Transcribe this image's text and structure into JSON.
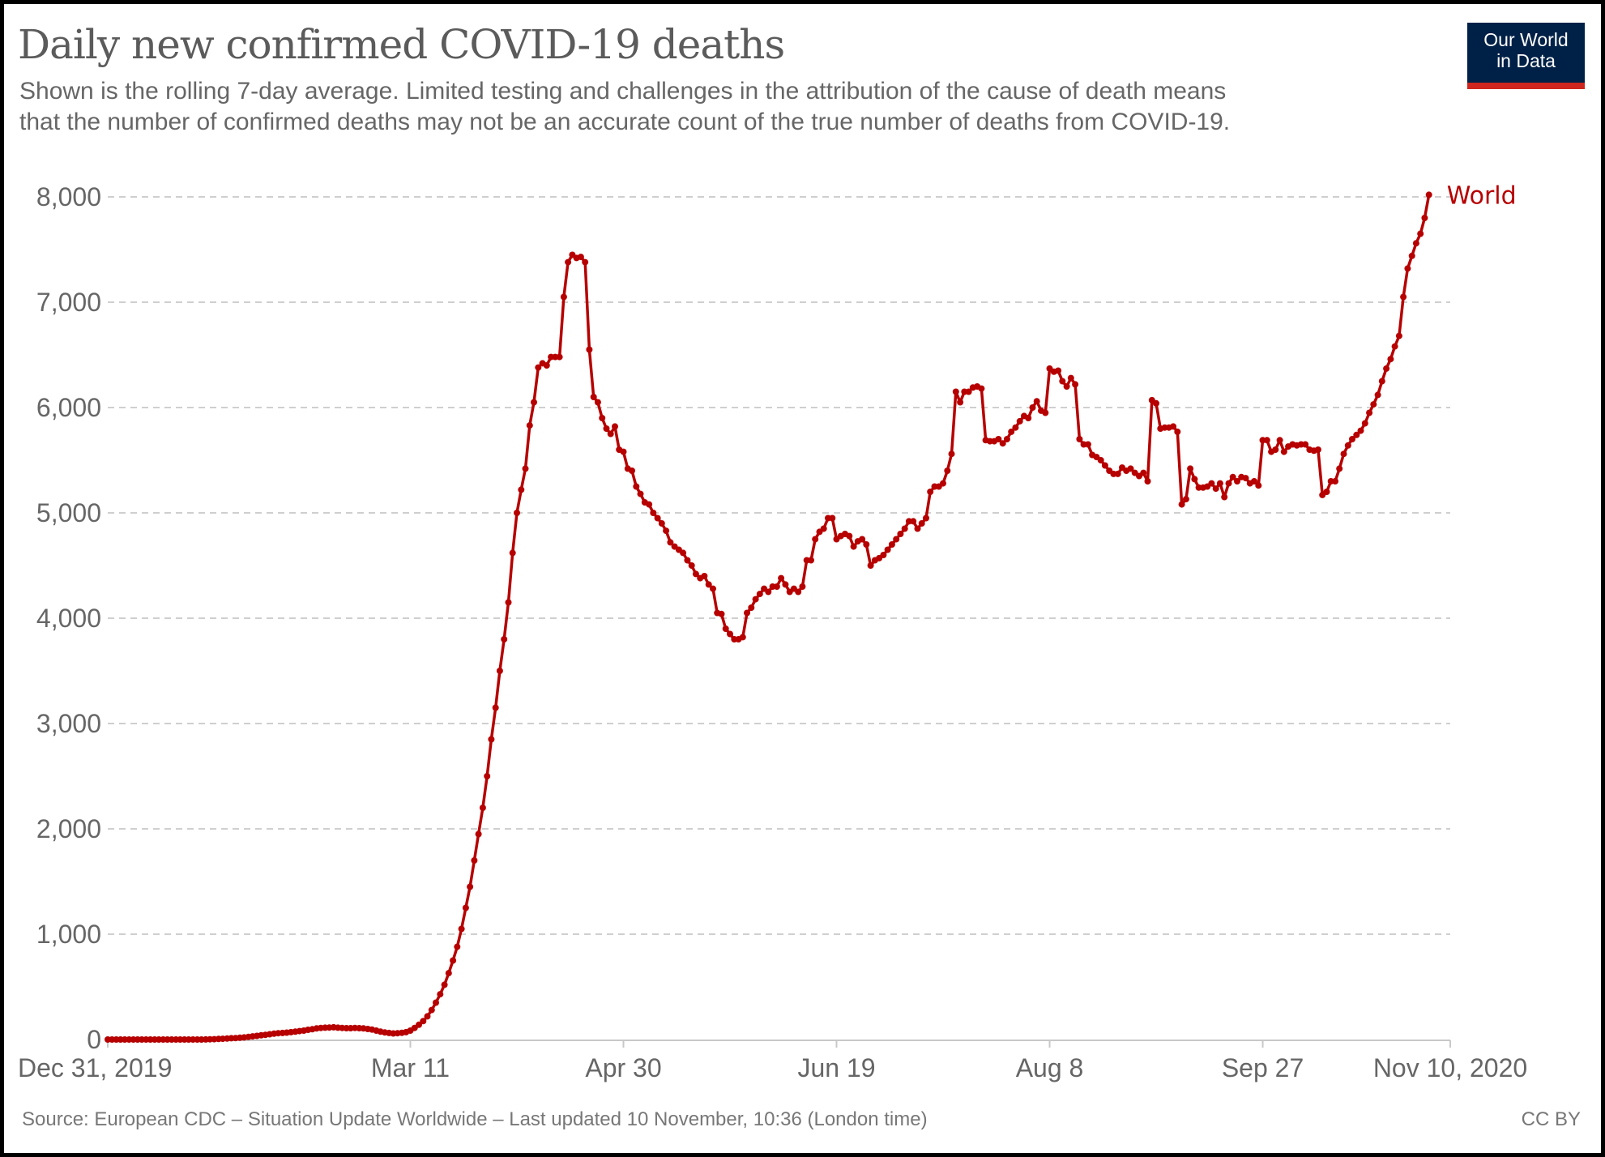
{
  "header": {
    "title": "Daily new confirmed COVID-19 deaths",
    "subtitle_line1": "Shown is the rolling 7-day average. Limited testing and challenges in the attribution of the cause of death means",
    "subtitle_line2": "that the number of confirmed deaths may not be an accurate count of the true number of deaths from COVID-19.",
    "logo_line1": "Our World",
    "logo_line2": "in Data"
  },
  "footer": {
    "source": "Source: European CDC – Situation Update Worldwide – Last updated 10 November, 10:36 (London time)",
    "license": "CC BY"
  },
  "colors": {
    "series": "#b70000",
    "logo_bg": "#002147",
    "logo_accent": "#ce261e",
    "grid": "#cccccc",
    "text": "#666666"
  },
  "chart_data": {
    "type": "line",
    "title": "Daily new confirmed COVID-19 deaths",
    "xlabel": "",
    "ylabel": "",
    "x_start": "Dec 31, 2019",
    "x_end": "Nov 10, 2020",
    "x_unit": "days since Dec 31, 2019",
    "xlim": [
      0,
      315
    ],
    "ylim": [
      0,
      8000
    ],
    "grid": true,
    "legend": "end-of-line label (right)",
    "yticks": [
      {
        "value": 0,
        "label": "0"
      },
      {
        "value": 1000,
        "label": "1,000"
      },
      {
        "value": 2000,
        "label": "2,000"
      },
      {
        "value": 3000,
        "label": "3,000"
      },
      {
        "value": 4000,
        "label": "4,000"
      },
      {
        "value": 5000,
        "label": "5,000"
      },
      {
        "value": 6000,
        "label": "6,000"
      },
      {
        "value": 7000,
        "label": "7,000"
      },
      {
        "value": 8000,
        "label": "8,000"
      }
    ],
    "xticks": [
      {
        "day": 0,
        "label": "Dec 31, 2019"
      },
      {
        "day": 71,
        "label": "Mar 11"
      },
      {
        "day": 121,
        "label": "Apr 30"
      },
      {
        "day": 171,
        "label": "Jun 19"
      },
      {
        "day": 221,
        "label": "Aug 8"
      },
      {
        "day": 271,
        "label": "Sep 27"
      },
      {
        "day": 315,
        "label": "Nov 10, 2020"
      }
    ],
    "series": [
      {
        "name": "World",
        "values": [
          0,
          0,
          0,
          0,
          0,
          0,
          0,
          0,
          0,
          0,
          0,
          0,
          0,
          0,
          0,
          0,
          0,
          0,
          0,
          0,
          0,
          0,
          0,
          1,
          2,
          3,
          5,
          7,
          9,
          12,
          14,
          17,
          20,
          25,
          30,
          35,
          40,
          45,
          50,
          55,
          60,
          62,
          65,
          70,
          75,
          80,
          85,
          92,
          98,
          105,
          110,
          112,
          114,
          116,
          112,
          110,
          108,
          108,
          110,
          108,
          105,
          100,
          95,
          85,
          75,
          68,
          62,
          58,
          60,
          64,
          70,
          85,
          110,
          140,
          175,
          220,
          280,
          350,
          430,
          520,
          630,
          750,
          880,
          1050,
          1250,
          1450,
          1700,
          1950,
          2200,
          2500,
          2850,
          3150,
          3500,
          3800,
          4150,
          4620,
          5000,
          5220,
          5420,
          5830,
          6050,
          6380,
          6420,
          6400,
          6480,
          6480,
          6480,
          7050,
          7380,
          7450,
          7420,
          7430,
          7380,
          6550,
          6100,
          6050,
          5900,
          5800,
          5750,
          5820,
          5600,
          5580,
          5420,
          5400,
          5250,
          5180,
          5100,
          5080,
          5000,
          4950,
          4900,
          4830,
          4720,
          4680,
          4650,
          4620,
          4550,
          4500,
          4420,
          4380,
          4400,
          4320,
          4280,
          4050,
          4040,
          3900,
          3850,
          3800,
          3800,
          3820,
          4050,
          4100,
          4180,
          4230,
          4280,
          4250,
          4300,
          4300,
          4380,
          4320,
          4250,
          4280,
          4250,
          4300,
          4550,
          4550,
          4750,
          4820,
          4850,
          4950,
          4950,
          4750,
          4780,
          4800,
          4780,
          4680,
          4730,
          4750,
          4700,
          4500,
          4550,
          4570,
          4600,
          4650,
          4700,
          4750,
          4800,
          4850,
          4920,
          4920,
          4850,
          4900,
          4950,
          5200,
          5250,
          5250,
          5280,
          5400,
          5560,
          6150,
          6050,
          6150,
          6150,
          6190,
          6200,
          6180,
          5690,
          5680,
          5680,
          5700,
          5660,
          5700,
          5770,
          5810,
          5870,
          5920,
          5900,
          6000,
          6060,
          5970,
          5950,
          6370,
          6340,
          6350,
          6250,
          6200,
          6280,
          6220,
          5700,
          5650,
          5650,
          5550,
          5530,
          5500,
          5450,
          5400,
          5370,
          5370,
          5430,
          5400,
          5420,
          5380,
          5350,
          5380,
          5300,
          6070,
          6040,
          5800,
          5810,
          5810,
          5820,
          5770,
          5080,
          5130,
          5420,
          5320,
          5240,
          5240,
          5250,
          5280,
          5230,
          5280,
          5150,
          5280,
          5340,
          5300,
          5340,
          5330,
          5280,
          5300,
          5260,
          5690,
          5690,
          5580,
          5600,
          5690,
          5580,
          5630,
          5650,
          5640,
          5650,
          5650,
          5600,
          5590,
          5600,
          5170,
          5200,
          5300,
          5300,
          5420,
          5560,
          5640,
          5700,
          5740,
          5780,
          5850,
          5950,
          6030,
          6120,
          6250,
          6370,
          6460,
          6580,
          6680,
          7050,
          7320,
          7440,
          7560,
          7650,
          7800,
          8020
        ]
      }
    ]
  }
}
